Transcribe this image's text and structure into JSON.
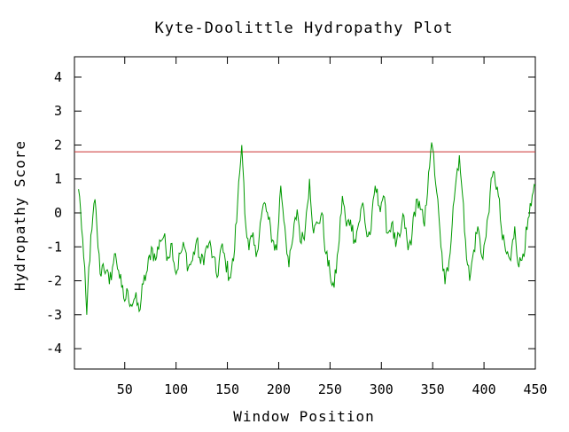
{
  "chart_data": {
    "type": "line",
    "title": "Kyte-Doolittle Hydropathy Plot",
    "xlabel": "Window Position",
    "ylabel": "Hydropathy Score",
    "xlim": [
      1,
      450
    ],
    "ylim": [
      -4.6,
      4.6
    ],
    "xticks": [
      50,
      100,
      150,
      200,
      250,
      300,
      350,
      400,
      450
    ],
    "yticks": [
      4,
      3,
      2,
      1,
      0,
      -1,
      -2,
      -3,
      -4
    ],
    "grid": false,
    "legend": "none",
    "threshold": {
      "y": 1.8,
      "color": "#cc3333"
    },
    "series": [
      {
        "color": "#009900",
        "x": [
          5,
          7,
          10,
          13,
          15,
          18,
          21,
          23,
          26,
          29,
          32,
          35,
          38,
          41,
          44,
          47,
          50,
          53,
          56,
          60,
          64,
          68,
          72,
          76,
          80,
          84,
          88,
          92,
          96,
          100,
          104,
          108,
          112,
          116,
          120,
          124,
          128,
          132,
          136,
          140,
          144,
          148,
          152,
          156,
          160,
          162,
          164,
          166,
          168,
          171,
          174,
          178,
          182,
          186,
          190,
          194,
          198,
          202,
          206,
          210,
          214,
          218,
          222,
          226,
          230,
          234,
          238,
          242,
          246,
          250,
          254,
          258,
          262,
          266,
          270,
          274,
          278,
          282,
          286,
          290,
          294,
          298,
          302,
          306,
          310,
          314,
          318,
          322,
          326,
          330,
          334,
          338,
          342,
          346,
          348,
          350,
          354,
          358,
          362,
          366,
          370,
          374,
          376,
          378,
          382,
          386,
          390,
          394,
          398,
          402,
          406,
          410,
          414,
          418,
          422,
          426,
          430,
          434,
          438,
          442,
          446,
          450
        ],
        "y": [
          0.7,
          0.1,
          -1.3,
          -3.0,
          -1.6,
          -0.5,
          0.4,
          -0.5,
          -1.8,
          -1.5,
          -1.7,
          -2.1,
          -1.6,
          -1.2,
          -1.7,
          -2.2,
          -2.6,
          -2.3,
          -2.7,
          -2.5,
          -2.9,
          -2.1,
          -1.7,
          -1.0,
          -1.4,
          -0.8,
          -0.7,
          -1.3,
          -0.9,
          -1.8,
          -1.2,
          -1.0,
          -1.6,
          -1.4,
          -0.8,
          -1.5,
          -1.2,
          -0.9,
          -1.3,
          -1.9,
          -1.0,
          -1.4,
          -1.9,
          -1.4,
          0.3,
          1.2,
          2.0,
          0.9,
          -0.4,
          -1.1,
          -0.7,
          -1.3,
          -0.3,
          0.3,
          -0.2,
          -0.8,
          -1.1,
          0.8,
          -0.4,
          -1.6,
          -0.7,
          0.1,
          -0.9,
          -0.4,
          1.0,
          -0.6,
          -0.3,
          0.0,
          -1.2,
          -1.8,
          -2.2,
          -1.1,
          0.5,
          -0.4,
          -0.2,
          -0.8,
          -0.3,
          0.3,
          -0.7,
          -0.5,
          0.8,
          0.2,
          0.5,
          -0.6,
          -0.3,
          -1.0,
          -0.7,
          -0.1,
          -1.1,
          -0.6,
          0.4,
          0.1,
          -0.4,
          1.2,
          1.8,
          1.9,
          0.6,
          -1.0,
          -2.1,
          -1.4,
          0.2,
          1.3,
          1.7,
          0.9,
          -0.8,
          -2.0,
          -1.1,
          -0.4,
          -1.3,
          -0.7,
          0.6,
          1.2,
          0.5,
          -0.8,
          -1.2,
          -1.4,
          -0.4,
          -1.6,
          -1.2,
          -0.5,
          0.2,
          0.8
        ]
      }
    ]
  }
}
